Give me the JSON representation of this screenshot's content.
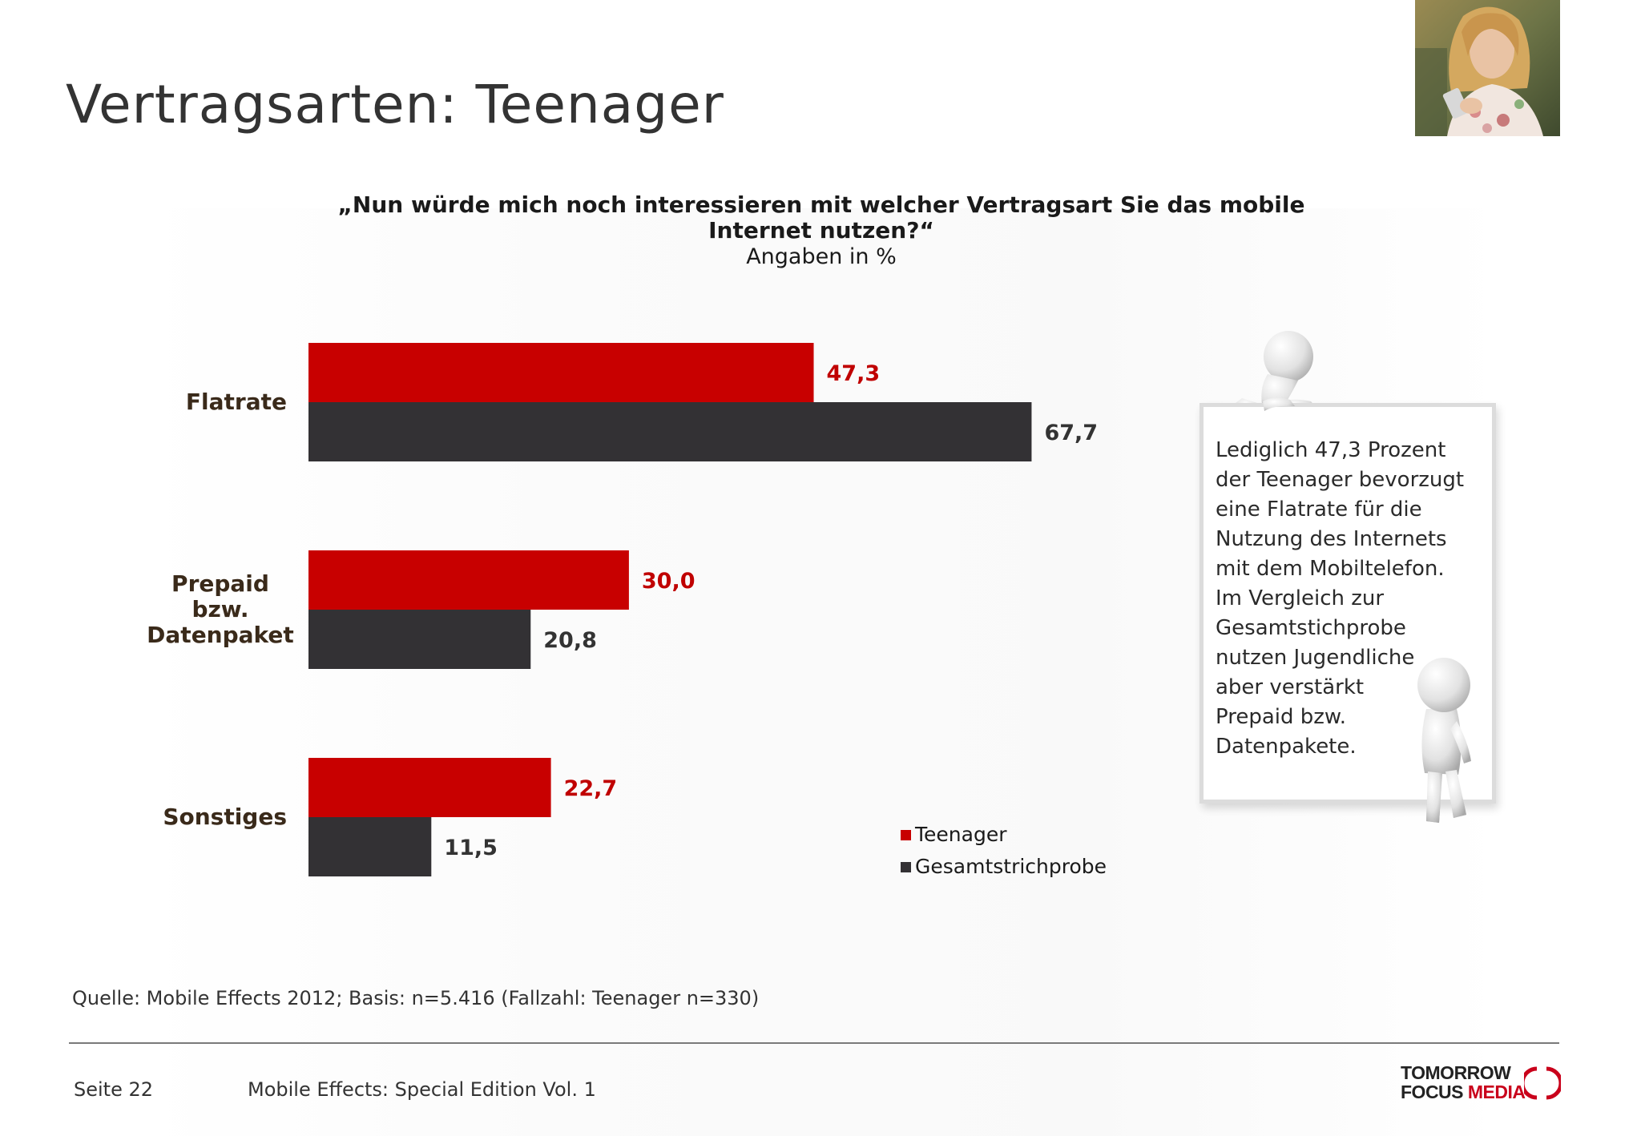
{
  "slide": {
    "title": "Vertragsarten: Teenager",
    "question": "„Nun würde mich noch interessieren mit welcher Vertragsart Sie das mobile Internet nutzen?“",
    "unit": "Angaben in %"
  },
  "chart_data": {
    "type": "bar",
    "orientation": "horizontal",
    "categories": [
      [
        "Flatrate"
      ],
      [
        "Prepaid",
        "bzw.",
        "Datenpaket"
      ],
      [
        "Sonstiges"
      ]
    ],
    "series": [
      {
        "name": "Teenager",
        "color": "#c80000",
        "values": [
          47.3,
          30.0,
          22.7
        ],
        "labels": [
          "47,3",
          "30,0",
          "22,7"
        ]
      },
      {
        "name": "Gesamtstrichprobe",
        "color": "#333134",
        "values": [
          67.7,
          20.8,
          11.5
        ],
        "labels": [
          "67,7",
          "20,8",
          "11,5"
        ]
      }
    ],
    "xlim": [
      0,
      100
    ],
    "grid": false,
    "legend_position": "bottom-right"
  },
  "callout": {
    "lines": [
      "Lediglich 47,3 Prozent",
      "der Teenager bevorzugt",
      "eine Flatrate für die",
      "Nutzung des Internets",
      "mit dem Mobiltelefon.",
      "Im Vergleich zur",
      "Gesamtstichprobe",
      "nutzen Jugendliche",
      "aber verstärkt",
      "Prepaid bzw.",
      "Datenpakete."
    ]
  },
  "footer": {
    "source": "Quelle: Mobile Effects 2012; Basis: n=5.416 (Fallzahl: Teenager n=330)",
    "page": "Seite 22",
    "publication": "Mobile Effects: Special Edition Vol. 1"
  },
  "logo": {
    "line1": "TOMORROW",
    "line2a": "FOCUS",
    "line2b": "MEDIA",
    "accent": "#c9001b"
  }
}
